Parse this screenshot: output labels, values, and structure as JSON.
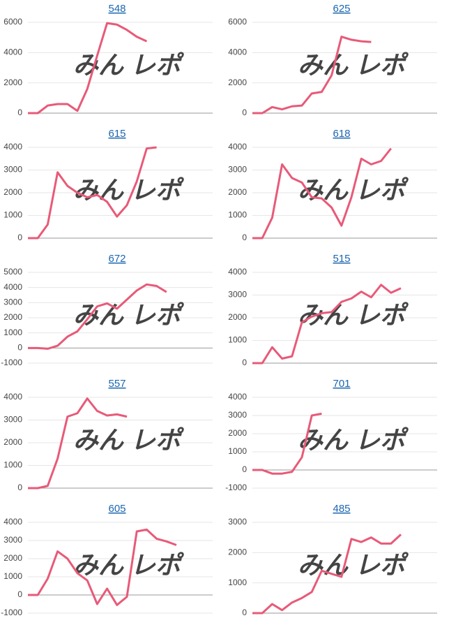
{
  "watermark": [
    "みん",
    "レポ"
  ],
  "chart_data": [
    {
      "type": "line",
      "title": "548",
      "color": "#e85a78",
      "grid": true,
      "ylim": [
        0,
        6000
      ],
      "yticks": [
        0,
        2000,
        4000,
        6000
      ],
      "values": [
        0,
        0,
        500,
        600,
        600,
        150,
        1600,
        3800,
        5950,
        5850,
        5500,
        5050,
        4750
      ]
    },
    {
      "type": "line",
      "title": "625",
      "color": "#e85a78",
      "grid": true,
      "ylim": [
        0,
        6000
      ],
      "yticks": [
        0,
        2000,
        4000,
        6000
      ],
      "values": [
        0,
        0,
        400,
        250,
        450,
        500,
        1300,
        1400,
        2500,
        5050,
        4850,
        4750,
        4700
      ]
    },
    {
      "type": "line",
      "title": "615",
      "color": "#e85a78",
      "grid": true,
      "ylim": [
        0,
        4000
      ],
      "yticks": [
        0,
        1000,
        2000,
        3000,
        4000
      ],
      "values": [
        0,
        0,
        600,
        2900,
        2300,
        2000,
        1800,
        1900,
        1600,
        950,
        1450,
        2500,
        3950,
        4000
      ]
    },
    {
      "type": "line",
      "title": "618",
      "color": "#e85a78",
      "grid": true,
      "ylim": [
        0,
        4000
      ],
      "yticks": [
        0,
        1000,
        2000,
        3000,
        4000
      ],
      "values": [
        0,
        0,
        900,
        3250,
        2650,
        2450,
        1800,
        1750,
        1350,
        550,
        1800,
        3500,
        3250,
        3400,
        3950
      ]
    },
    {
      "type": "line",
      "title": "672",
      "color": "#e85a78",
      "grid": true,
      "ylim": [
        -1000,
        5000
      ],
      "yticks": [
        -1000,
        0,
        1000,
        2000,
        3000,
        4000,
        5000
      ],
      "values": [
        0,
        0,
        -50,
        150,
        750,
        1100,
        1900,
        2750,
        2950,
        2600,
        3200,
        3800,
        4200,
        4100,
        3700
      ]
    },
    {
      "type": "line",
      "title": "515",
      "color": "#e85a78",
      "grid": true,
      "ylim": [
        0,
        4000
      ],
      "yticks": [
        0,
        1000,
        2000,
        3000,
        4000
      ],
      "values": [
        0,
        0,
        700,
        200,
        300,
        1800,
        2050,
        2200,
        2250,
        2700,
        2850,
        3150,
        2900,
        3450,
        3100,
        3300
      ]
    },
    {
      "type": "line",
      "title": "557",
      "color": "#e85a78",
      "grid": true,
      "ylim": [
        0,
        4000
      ],
      "yticks": [
        0,
        1000,
        2000,
        3000,
        4000
      ],
      "values": [
        0,
        0,
        100,
        1300,
        3150,
        3300,
        3950,
        3400,
        3200,
        3250,
        3150
      ]
    },
    {
      "type": "line",
      "title": "701",
      "color": "#e85a78",
      "grid": true,
      "ylim": [
        -1000,
        4000
      ],
      "yticks": [
        -1000,
        0,
        1000,
        2000,
        3000,
        4000
      ],
      "values": [
        0,
        0,
        -200,
        -200,
        -100,
        700,
        3000,
        3100
      ]
    },
    {
      "type": "line",
      "title": "605",
      "color": "#e85a78",
      "grid": true,
      "ylim": [
        -1000,
        4000
      ],
      "yticks": [
        -1000,
        0,
        1000,
        2000,
        3000,
        4000
      ],
      "values": [
        0,
        0,
        900,
        2400,
        2000,
        1200,
        800,
        -500,
        350,
        -550,
        -100,
        3500,
        3600,
        3100,
        2950,
        2750
      ]
    },
    {
      "type": "line",
      "title": "485",
      "color": "#e85a78",
      "grid": true,
      "ylim": [
        0,
        3000
      ],
      "yticks": [
        0,
        1000,
        2000,
        3000
      ],
      "values": [
        0,
        0,
        300,
        100,
        350,
        500,
        700,
        1400,
        1300,
        1200,
        2450,
        2350,
        2500,
        2300,
        2300,
        2600
      ]
    }
  ]
}
